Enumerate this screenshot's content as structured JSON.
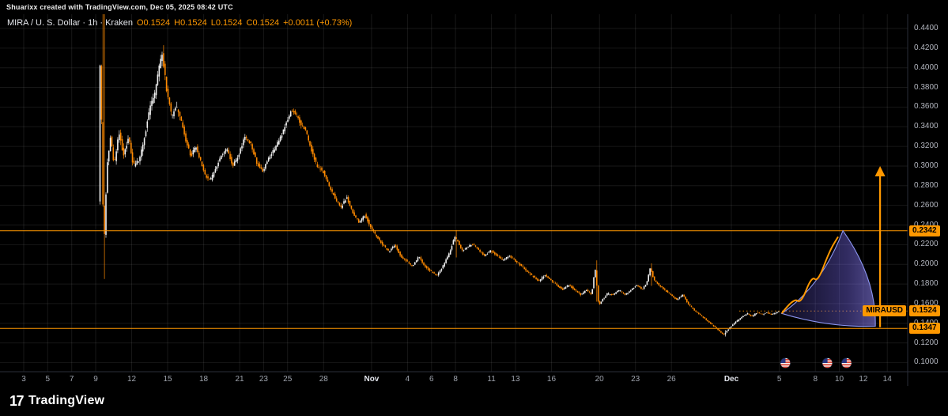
{
  "top_bar": {
    "attribution": "Shuarixx created with TradingView.com, Dec 05, 2025 08:42 UTC"
  },
  "legend": {
    "title": "MIRA / U. S. Dollar · 1h · Kraken",
    "open": "O0.1524",
    "high": "H0.1524",
    "low": "L0.1524",
    "close": "C0.1524",
    "change": "+0.0011 (+0.73%)"
  },
  "price_axis": {
    "level_badges": [
      {
        "text": "0.2342",
        "price": 0.2342
      },
      {
        "text": "0.1347",
        "price": 0.1347
      }
    ],
    "current_badge": {
      "text": "0.1524",
      "price": 0.1524
    },
    "symbol_badge": {
      "text": "MIRAUSD",
      "price": 0.1524
    }
  },
  "footer": {
    "logo_glyph": "17",
    "logo_text": "TradingView"
  },
  "colors": {
    "background": "#000000",
    "up_candle": "#f2f2f2",
    "down_candle": "#ff8a00",
    "accent_orange": "#ff9800",
    "axis_text": "#b2b5be",
    "grid": "rgba(255,255,255,0.09)",
    "fan_stroke": "#8b95f0",
    "border": "#2a2e39"
  },
  "chart_data": {
    "type": "candlestick",
    "title": "MIRA / U.S. Dollar, 1h, Kraken",
    "symbol": "MIRAUSD",
    "exchange": "Kraken",
    "interval": "1h",
    "current_ohlc": {
      "open": 0.1524,
      "high": 0.1524,
      "low": 0.1524,
      "close": 0.1524,
      "change": "+0.0011",
      "change_pct": "+0.73%"
    },
    "y_axis": {
      "min": 0.1,
      "max": 0.44,
      "tick_step": 0.02,
      "tick_labels": [
        "0.4400",
        "0.4200",
        "0.4000",
        "0.3800",
        "0.3600",
        "0.3400",
        "0.3200",
        "0.3000",
        "0.2800",
        "0.2600",
        "0.2400",
        "0.2200",
        "0.2000",
        "0.1800",
        "0.1600",
        "0.1400",
        "0.1200",
        "0.1000"
      ]
    },
    "x_axis": {
      "start": "Oct 3",
      "end": "Dec 14",
      "labels": [
        {
          "text": "3",
          "day": 0
        },
        {
          "text": "5",
          "day": 2
        },
        {
          "text": "7",
          "day": 4
        },
        {
          "text": "9",
          "day": 6
        },
        {
          "text": "12",
          "day": 9
        },
        {
          "text": "15",
          "day": 12
        },
        {
          "text": "18",
          "day": 15
        },
        {
          "text": "21",
          "day": 18
        },
        {
          "text": "23",
          "day": 20
        },
        {
          "text": "25",
          "day": 22
        },
        {
          "text": "28",
          "day": 25
        },
        {
          "text": "Nov",
          "day": 29,
          "major": true
        },
        {
          "text": "4",
          "day": 32
        },
        {
          "text": "6",
          "day": 34
        },
        {
          "text": "8",
          "day": 36
        },
        {
          "text": "11",
          "day": 39
        },
        {
          "text": "13",
          "day": 41
        },
        {
          "text": "16",
          "day": 44
        },
        {
          "text": "20",
          "day": 48
        },
        {
          "text": "23",
          "day": 51
        },
        {
          "text": "26",
          "day": 54
        },
        {
          "text": "Dec",
          "day": 59,
          "major": true
        },
        {
          "text": "5",
          "day": 63
        },
        {
          "text": "8",
          "day": 66
        },
        {
          "text": "10",
          "day": 68
        },
        {
          "text": "12",
          "day": 70
        },
        {
          "text": "14",
          "day": 72
        }
      ]
    },
    "horizontal_levels": [
      {
        "price": 0.2342
      },
      {
        "price": 0.1347
      }
    ],
    "current_price": 0.1524,
    "price_anchors": [
      [
        6.3,
        0.265
      ],
      [
        6.45,
        0.43
      ],
      [
        6.6,
        0.3
      ],
      [
        6.75,
        0.215
      ],
      [
        7.0,
        0.3
      ],
      [
        7.3,
        0.33
      ],
      [
        7.6,
        0.3
      ],
      [
        8.0,
        0.335
      ],
      [
        8.4,
        0.31
      ],
      [
        8.8,
        0.33
      ],
      [
        9.2,
        0.3
      ],
      [
        9.6,
        0.305
      ],
      [
        10.0,
        0.32
      ],
      [
        10.5,
        0.355
      ],
      [
        11.0,
        0.375
      ],
      [
        11.4,
        0.405
      ],
      [
        11.6,
        0.415
      ],
      [
        12.0,
        0.375
      ],
      [
        12.4,
        0.35
      ],
      [
        12.8,
        0.36
      ],
      [
        13.2,
        0.345
      ],
      [
        13.6,
        0.325
      ],
      [
        14.0,
        0.31
      ],
      [
        14.4,
        0.32
      ],
      [
        14.8,
        0.305
      ],
      [
        15.2,
        0.29
      ],
      [
        15.6,
        0.285
      ],
      [
        16.0,
        0.296
      ],
      [
        16.5,
        0.31
      ],
      [
        17.0,
        0.318
      ],
      [
        17.5,
        0.3
      ],
      [
        18.0,
        0.312
      ],
      [
        18.5,
        0.33
      ],
      [
        19.0,
        0.322
      ],
      [
        19.5,
        0.303
      ],
      [
        20.0,
        0.295
      ],
      [
        20.5,
        0.308
      ],
      [
        21.0,
        0.318
      ],
      [
        21.5,
        0.33
      ],
      [
        22.0,
        0.345
      ],
      [
        22.4,
        0.358
      ],
      [
        22.8,
        0.352
      ],
      [
        23.2,
        0.342
      ],
      [
        23.6,
        0.335
      ],
      [
        24.0,
        0.318
      ],
      [
        24.5,
        0.3
      ],
      [
        25.0,
        0.295
      ],
      [
        25.5,
        0.28
      ],
      [
        26.0,
        0.268
      ],
      [
        26.5,
        0.258
      ],
      [
        27.0,
        0.268
      ],
      [
        27.5,
        0.252
      ],
      [
        28.0,
        0.243
      ],
      [
        28.5,
        0.25
      ],
      [
        29.0,
        0.238
      ],
      [
        29.5,
        0.228
      ],
      [
        30.0,
        0.22
      ],
      [
        30.5,
        0.213
      ],
      [
        31.0,
        0.22
      ],
      [
        31.5,
        0.208
      ],
      [
        32.0,
        0.203
      ],
      [
        32.5,
        0.198
      ],
      [
        33.0,
        0.208
      ],
      [
        33.5,
        0.198
      ],
      [
        34.0,
        0.193
      ],
      [
        34.5,
        0.188
      ],
      [
        35.0,
        0.198
      ],
      [
        35.5,
        0.21
      ],
      [
        36.0,
        0.228
      ],
      [
        36.3,
        0.222
      ],
      [
        36.6,
        0.214
      ],
      [
        37.0,
        0.217
      ],
      [
        37.5,
        0.221
      ],
      [
        38.0,
        0.214
      ],
      [
        38.5,
        0.209
      ],
      [
        39.0,
        0.214
      ],
      [
        39.5,
        0.209
      ],
      [
        40.0,
        0.204
      ],
      [
        40.5,
        0.209
      ],
      [
        41.0,
        0.204
      ],
      [
        41.5,
        0.199
      ],
      [
        42.0,
        0.193
      ],
      [
        42.5,
        0.188
      ],
      [
        43.0,
        0.183
      ],
      [
        43.5,
        0.189
      ],
      [
        44.0,
        0.184
      ],
      [
        44.5,
        0.179
      ],
      [
        45.0,
        0.174
      ],
      [
        45.5,
        0.179
      ],
      [
        46.0,
        0.174
      ],
      [
        46.5,
        0.169
      ],
      [
        47.0,
        0.174
      ],
      [
        47.4,
        0.169
      ],
      [
        47.7,
        0.196
      ],
      [
        48.0,
        0.158
      ],
      [
        48.3,
        0.164
      ],
      [
        48.7,
        0.17
      ],
      [
        49.2,
        0.169
      ],
      [
        49.7,
        0.174
      ],
      [
        50.2,
        0.169
      ],
      [
        50.7,
        0.174
      ],
      [
        51.2,
        0.179
      ],
      [
        51.6,
        0.174
      ],
      [
        52.0,
        0.181
      ],
      [
        52.3,
        0.197
      ],
      [
        52.6,
        0.184
      ],
      [
        53.0,
        0.179
      ],
      [
        53.5,
        0.174
      ],
      [
        54.0,
        0.169
      ],
      [
        54.5,
        0.164
      ],
      [
        55.0,
        0.169
      ],
      [
        55.5,
        0.159
      ],
      [
        56.0,
        0.153
      ],
      [
        56.5,
        0.148
      ],
      [
        57.0,
        0.143
      ],
      [
        57.5,
        0.138
      ],
      [
        58.0,
        0.133
      ],
      [
        58.4,
        0.128
      ],
      [
        58.8,
        0.134
      ],
      [
        59.2,
        0.139
      ],
      [
        59.6,
        0.143
      ],
      [
        60.0,
        0.147
      ],
      [
        60.4,
        0.15
      ],
      [
        60.8,
        0.147
      ],
      [
        61.2,
        0.151
      ],
      [
        61.6,
        0.149
      ],
      [
        62.0,
        0.151
      ],
      [
        62.4,
        0.149
      ],
      [
        62.8,
        0.151
      ],
      [
        63.0,
        0.1524
      ]
    ],
    "wick_spikes": [
      [
        6.5,
        0.47,
        0.3
      ],
      [
        6.62,
        0.46,
        0.185
      ],
      [
        11.55,
        0.423,
        0.4
      ],
      [
        36.05,
        0.235,
        0.207
      ],
      [
        47.75,
        0.204,
        0.162
      ],
      [
        52.3,
        0.201,
        0.178
      ],
      [
        58.4,
        0.133,
        0.1265
      ]
    ],
    "projection": {
      "start": [
        63.2,
        0.15
      ],
      "apex": [
        68.3,
        0.2342
      ],
      "end": [
        71.0,
        0.137
      ],
      "wave": [
        [
          63.2,
          0.15
        ],
        [
          64.2,
          0.166
        ],
        [
          64.8,
          0.16
        ],
        [
          65.7,
          0.188
        ],
        [
          66.2,
          0.182
        ],
        [
          67.2,
          0.214
        ],
        [
          67.9,
          0.228
        ]
      ]
    },
    "arrow_up": {
      "day": 71.4,
      "from_price": 0.136,
      "to_price": 0.3
    },
    "event_marker_days": [
      63.5,
      67.0,
      68.6
    ]
  }
}
